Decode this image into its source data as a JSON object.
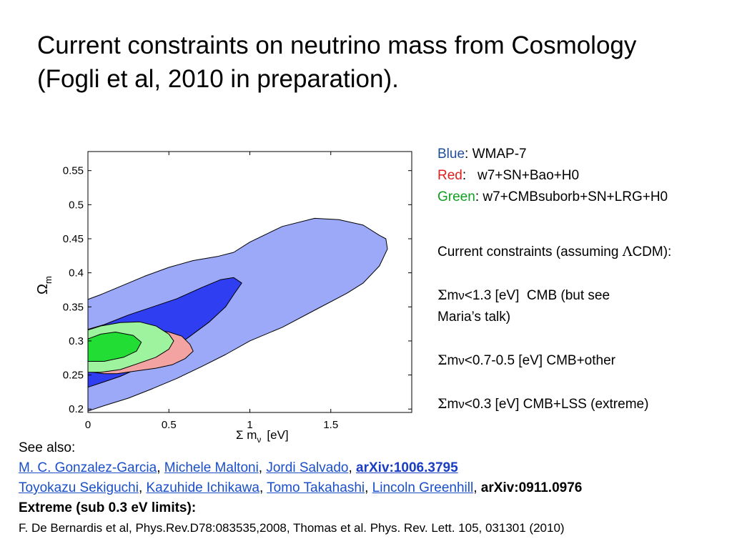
{
  "title": {
    "line1": "Current constraints on neutrino mass from Cosmology",
    "line2": "(Fogli et al, 2010 in preparation)."
  },
  "legend": {
    "blue_word": "Blue",
    "blue_rest": ": WMAP-7",
    "red_word": "Red",
    "red_rest": ":   w7+SN+Bao+H0",
    "green_word": "Green",
    "green_rest": ": w7+CMBsuborb+SN+LRG+H0",
    "colors": {
      "blue": "#1f4e96",
      "red": "#e02020",
      "green": "#10a020"
    }
  },
  "constraints": {
    "heading_pre": "Current constraints (assuming ",
    "heading_symbol": "Λ",
    "heading_post": "CDM):",
    "sigma": "Σ",
    "m": "m",
    "nu": "ν",
    "item1": "<1.3 [eV]  CMB (but see",
    "item1_cont": "Maria’s talk)",
    "item2": "<0.7-0.5 [eV] CMB+other",
    "item3": "<0.3 [eV] CMB+LSS (extreme)"
  },
  "references": {
    "see_also": "See also:",
    "ref1": {
      "authors": [
        "M. C. Gonzalez-Garcia",
        "Michele Maltoni",
        "Jordi Salvado"
      ],
      "arxiv": "arXiv:1006.3795"
    },
    "ref2": {
      "authors": [
        "Toyokazu Sekiguchi",
        "Kazuhide Ichikawa",
        "Tomo Takahashi",
        "Lincoln Greenhill"
      ],
      "arxiv": "arXiv:0911.0976"
    },
    "extreme_heading": "Extreme (sub 0.3 eV limits):",
    "extreme_refs": "F. De Bernardis et al, Phys.Rev.D78:083535,2008, Thomas et al. Phys. Rev. Lett. 105, 031301 (2010)"
  },
  "chart_data": {
    "type": "area",
    "xlabel_symbol": "Σ m",
    "xlabel_sub": "ν",
    "xlabel_unit": "[eV]",
    "ylabel_symbol": "Ω",
    "ylabel_sub": "m",
    "xlim": [
      0,
      2.0
    ],
    "ylim": [
      0.195,
      0.578
    ],
    "xticks": [
      0,
      0.5,
      1,
      1.5
    ],
    "xtick_labels": [
      "0",
      "0.5",
      "1",
      "1.5"
    ],
    "yticks": [
      0.2,
      0.25,
      0.3,
      0.35,
      0.4,
      0.45,
      0.5,
      0.55
    ],
    "ytick_labels": [
      "0.2",
      "0.25",
      "0.3",
      "0.35",
      "0.4",
      "0.45",
      "0.5",
      "0.55"
    ],
    "grid": false,
    "series": [
      {
        "name": "Blue",
        "color_outer": "#9ca8f8",
        "color_inner": "#2e3ef0",
        "outer": [
          [
            0,
            0.361
          ],
          [
            0.08,
            0.368
          ],
          [
            0.2,
            0.38
          ],
          [
            0.35,
            0.395
          ],
          [
            0.5,
            0.408
          ],
          [
            0.65,
            0.418
          ],
          [
            0.8,
            0.424
          ],
          [
            0.9,
            0.43
          ],
          [
            1.0,
            0.445
          ],
          [
            1.2,
            0.468
          ],
          [
            1.4,
            0.48
          ],
          [
            1.55,
            0.478
          ],
          [
            1.7,
            0.47
          ],
          [
            1.8,
            0.455
          ],
          [
            1.84,
            0.45
          ],
          [
            1.85,
            0.435
          ],
          [
            1.8,
            0.41
          ],
          [
            1.7,
            0.385
          ],
          [
            1.6,
            0.37
          ],
          [
            1.4,
            0.345
          ],
          [
            1.2,
            0.32
          ],
          [
            1.0,
            0.3
          ],
          [
            0.85,
            0.28
          ],
          [
            0.7,
            0.262
          ],
          [
            0.55,
            0.245
          ],
          [
            0.4,
            0.23
          ],
          [
            0.25,
            0.216
          ],
          [
            0.1,
            0.205
          ],
          [
            0,
            0.197
          ]
        ],
        "inner": [
          [
            0,
            0.317
          ],
          [
            0.1,
            0.324
          ],
          [
            0.25,
            0.338
          ],
          [
            0.4,
            0.35
          ],
          [
            0.55,
            0.362
          ],
          [
            0.7,
            0.378
          ],
          [
            0.82,
            0.39
          ],
          [
            0.9,
            0.393
          ],
          [
            0.95,
            0.385
          ],
          [
            0.9,
            0.368
          ],
          [
            0.85,
            0.35
          ],
          [
            0.75,
            0.328
          ],
          [
            0.62,
            0.305
          ],
          [
            0.5,
            0.285
          ],
          [
            0.35,
            0.264
          ],
          [
            0.2,
            0.248
          ],
          [
            0.1,
            0.24
          ],
          [
            0,
            0.232
          ]
        ]
      },
      {
        "name": "Red",
        "color_outer": "#f4a3a3",
        "outer": [
          [
            0,
            0.314
          ],
          [
            0.12,
            0.318
          ],
          [
            0.2,
            0.317
          ],
          [
            0.3,
            0.32
          ],
          [
            0.4,
            0.317
          ],
          [
            0.5,
            0.313
          ],
          [
            0.58,
            0.307
          ],
          [
            0.63,
            0.295
          ],
          [
            0.65,
            0.285
          ],
          [
            0.6,
            0.274
          ],
          [
            0.52,
            0.265
          ],
          [
            0.42,
            0.26
          ],
          [
            0.3,
            0.256
          ],
          [
            0.18,
            0.252
          ],
          [
            0.1,
            0.252
          ],
          [
            0,
            0.255
          ]
        ]
      },
      {
        "name": "Green",
        "color_outer": "#9ef39e",
        "color_inner": "#22dd33",
        "outer": [
          [
            0,
            0.316
          ],
          [
            0.08,
            0.322
          ],
          [
            0.2,
            0.327
          ],
          [
            0.32,
            0.328
          ],
          [
            0.42,
            0.322
          ],
          [
            0.5,
            0.31
          ],
          [
            0.53,
            0.3
          ],
          [
            0.5,
            0.288
          ],
          [
            0.42,
            0.276
          ],
          [
            0.3,
            0.266
          ],
          [
            0.2,
            0.258
          ],
          [
            0.08,
            0.254
          ],
          [
            0,
            0.254
          ]
        ],
        "inner": [
          [
            0,
            0.303
          ],
          [
            0.08,
            0.31
          ],
          [
            0.17,
            0.313
          ],
          [
            0.28,
            0.308
          ],
          [
            0.33,
            0.298
          ],
          [
            0.3,
            0.285
          ],
          [
            0.22,
            0.276
          ],
          [
            0.1,
            0.27
          ],
          [
            0,
            0.27
          ]
        ]
      }
    ]
  }
}
